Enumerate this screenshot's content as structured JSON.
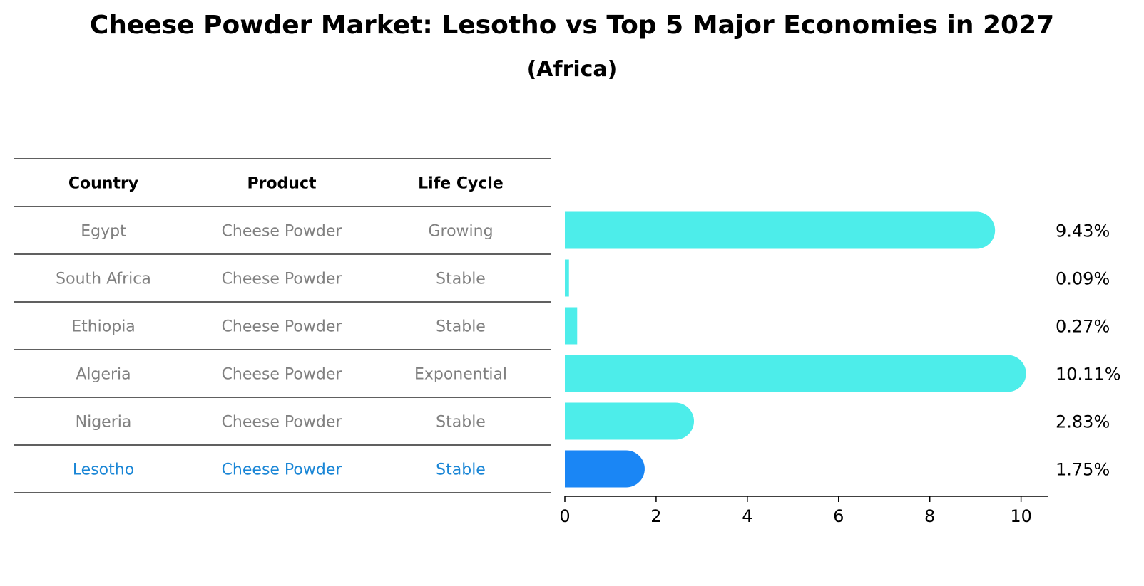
{
  "chart_data": {
    "type": "bar",
    "orientation": "horizontal",
    "title": "Cheese Powder Market: Lesotho vs Top 5 Major Economies in 2027",
    "subtitle": "(Africa)",
    "xlim": [
      0,
      10.6
    ],
    "x_ticks": [
      0,
      2,
      4,
      6,
      8,
      10
    ],
    "table_headers": [
      "Country",
      "Product",
      "Life Cycle"
    ],
    "rows": [
      {
        "country": "Egypt",
        "product": "Cheese Powder",
        "life_cycle": "Growing",
        "value": 9.43,
        "label": "9.43%",
        "highlight": false
      },
      {
        "country": "South Africa",
        "product": "Cheese Powder",
        "life_cycle": "Stable",
        "value": 0.09,
        "label": "0.09%",
        "highlight": false
      },
      {
        "country": "Ethiopia",
        "product": "Cheese Powder",
        "life_cycle": "Stable",
        "value": 0.27,
        "label": "0.27%",
        "highlight": false
      },
      {
        "country": "Algeria",
        "product": "Cheese Powder",
        "life_cycle": "Exponential",
        "value": 10.11,
        "label": "10.11%",
        "highlight": false
      },
      {
        "country": "Nigeria",
        "product": "Cheese Powder",
        "life_cycle": "Stable",
        "value": 2.83,
        "label": "2.83%",
        "highlight": false
      },
      {
        "country": "Lesotho",
        "product": "Cheese Powder",
        "life_cycle": "Stable",
        "value": 1.75,
        "label": "1.75%",
        "highlight": true
      }
    ],
    "colors": {
      "bar": "#4DEDEA",
      "highlight_bar": "#1A86F5",
      "text_muted": "#808080",
      "text_highlight": "#1A86D6",
      "line": "#000000"
    }
  }
}
